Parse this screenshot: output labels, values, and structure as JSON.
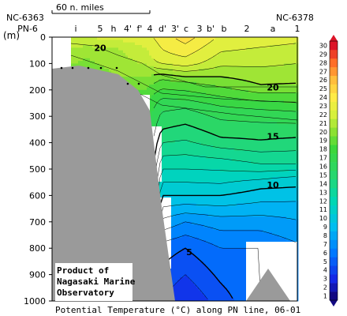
{
  "chart_data": {
    "type": "heatmap",
    "title": "Potential Temperature (°C) along PN line, 06-01",
    "ylabel": "(m)",
    "ylim": [
      1000,
      0
    ],
    "yticks": [
      0,
      100,
      200,
      300,
      400,
      500,
      600,
      700,
      800,
      900,
      1000
    ],
    "scale_label": "60 n. miles",
    "station_labels": {
      "left_top": "NC-6363",
      "left": "PN-6",
      "right_top": "NC-6378",
      "right": "1",
      "stations": [
        "i",
        "5",
        "h",
        "4'",
        "f'",
        "4",
        "d'",
        "3'",
        "c",
        "3",
        "b'",
        "b",
        "2",
        "a"
      ]
    },
    "contour_labels": [
      {
        "value": "20",
        "x_station": "5",
        "depth": 40
      },
      {
        "value": "20",
        "x_station": "a",
        "depth": 190
      },
      {
        "value": "15",
        "x_station": "a",
        "depth": 375
      },
      {
        "value": "10",
        "x_station": "a",
        "depth": 560
      },
      {
        "value": "5",
        "x_station": "3'",
        "depth": 815
      }
    ],
    "colorbar": {
      "min": 1,
      "max": 30,
      "ticks": [
        1,
        2,
        3,
        4,
        5,
        6,
        7,
        8,
        9,
        10,
        11,
        12,
        13,
        14,
        15,
        16,
        17,
        18,
        19,
        20,
        21,
        22,
        23,
        24,
        25,
        26,
        27,
        28,
        29,
        30
      ]
    },
    "credit": [
      "Product of",
      "Nagasaki Marine",
      "Observatory"
    ]
  }
}
